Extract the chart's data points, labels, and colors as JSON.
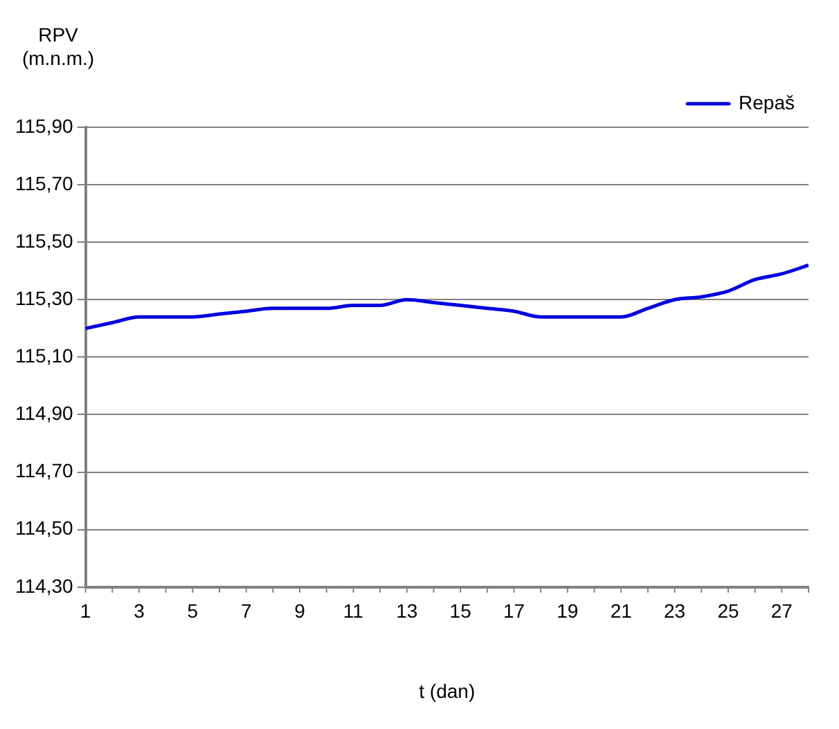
{
  "chart_data": {
    "type": "line",
    "xlabel": "t (dan)",
    "ylabel": "RPV\n(m.n.m.)",
    "x": [
      1,
      2,
      3,
      4,
      5,
      6,
      7,
      8,
      9,
      10,
      11,
      12,
      13,
      14,
      15,
      16,
      17,
      18,
      19,
      20,
      21,
      22,
      23,
      24,
      25,
      26,
      27,
      28
    ],
    "series": [
      {
        "name": "Repaš",
        "color": "#0000e0",
        "values": [
          115.2,
          115.22,
          115.24,
          115.24,
          115.24,
          115.25,
          115.26,
          115.27,
          115.27,
          115.27,
          115.28,
          115.28,
          115.3,
          115.29,
          115.28,
          115.27,
          115.26,
          115.24,
          115.24,
          115.24,
          115.24,
          115.27,
          115.3,
          115.31,
          115.33,
          115.37,
          115.39,
          115.42
        ]
      }
    ],
    "xlim": [
      1,
      28
    ],
    "xticks": [
      1,
      3,
      5,
      7,
      9,
      11,
      13,
      15,
      17,
      19,
      21,
      23,
      25,
      27
    ],
    "ylim": [
      114.3,
      115.9
    ],
    "yticks": [
      {
        "value": 114.3,
        "label": "114,30"
      },
      {
        "value": 114.5,
        "label": "114,50"
      },
      {
        "value": 114.7,
        "label": "114,70"
      },
      {
        "value": 114.9,
        "label": "114,90"
      },
      {
        "value": 115.1,
        "label": "115,10"
      },
      {
        "value": 115.3,
        "label": "115,30"
      },
      {
        "value": 115.5,
        "label": "115,50"
      },
      {
        "value": 115.7,
        "label": "115,70"
      },
      {
        "value": 115.9,
        "label": "115,90"
      }
    ],
    "grid": "y",
    "legend": "top right",
    "marker": "none",
    "line_style": "solid"
  }
}
